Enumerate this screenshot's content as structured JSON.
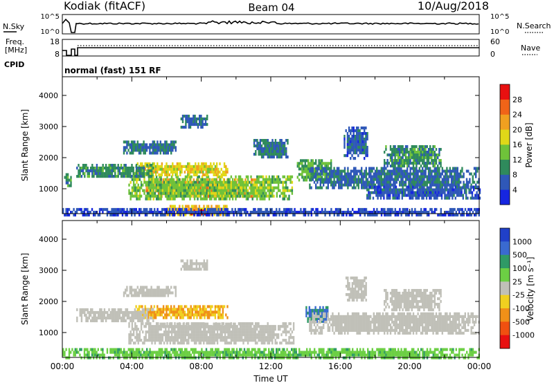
{
  "header": {
    "station": "Kodiak (fitACF)",
    "beam": "Beam 04",
    "date": "10/Aug/2018"
  },
  "noise_panel": {
    "left_label": "N.Sky",
    "right_label": "N.Search",
    "left_ticks": [
      "10^5",
      "10^0"
    ],
    "right_ticks": [
      "10^5",
      "10^0"
    ]
  },
  "freq_panel": {
    "left_label_line1": "Freq.",
    "left_label_line2": "[MHz]",
    "left_ticks": [
      "18",
      "8"
    ],
    "right_label": "Nave",
    "right_ticks": [
      "60",
      "0"
    ]
  },
  "cpid": {
    "label": "CPID",
    "value": "normal (fast) 151 RF"
  },
  "chart_data": [
    {
      "type": "heatmap",
      "name": "power",
      "ylabel": "Slant Range [km]",
      "ylim": [
        200,
        4600
      ],
      "yticks": [
        1000,
        2000,
        3000,
        4000
      ],
      "xlim": [
        0,
        24
      ],
      "colorbar": {
        "label": "Power [dB]",
        "ticks": [
          "4",
          "8",
          "12",
          "16",
          "20",
          "24",
          "28"
        ],
        "colors": [
          "#1626e0",
          "#2f58b8",
          "#2f8a5c",
          "#6fc23a",
          "#e0d818",
          "#f0a020",
          "#f06418",
          "#e81010"
        ]
      },
      "regions": [
        {
          "t0": 6.0,
          "t1": 10.2,
          "r0": 820,
          "r1": 1150,
          "dB": 30
        },
        {
          "t0": 4.8,
          "t1": 11.2,
          "r0": 740,
          "r1": 1330,
          "dB": 22
        },
        {
          "t0": 3.8,
          "t1": 13.2,
          "r0": 660,
          "r1": 1430,
          "dB": 14
        },
        {
          "t0": 4.2,
          "t1": 9.5,
          "r0": 1460,
          "r1": 1850,
          "dB": 18
        },
        {
          "t0": 0.8,
          "t1": 5.2,
          "r0": 1380,
          "r1": 1800,
          "dB": 10
        },
        {
          "t0": 3.5,
          "t1": 6.5,
          "r0": 2150,
          "r1": 2550,
          "dB": 8
        },
        {
          "t0": 6.8,
          "t1": 8.3,
          "r0": 2980,
          "r1": 3380,
          "dB": 7
        },
        {
          "t0": 0.1,
          "t1": 0.5,
          "r0": 1100,
          "r1": 1500,
          "dB": 10
        },
        {
          "t0": 13.5,
          "t1": 15.5,
          "r0": 1250,
          "r1": 1950,
          "dB": 12
        },
        {
          "t0": 14.2,
          "t1": 24,
          "r0": 1000,
          "r1": 1700,
          "dB": 7
        },
        {
          "t0": 17.5,
          "t1": 24,
          "r0": 700,
          "r1": 1100,
          "dB": 6
        },
        {
          "t0": 11.0,
          "t1": 13.0,
          "r0": 2000,
          "r1": 2600,
          "dB": 8
        },
        {
          "t0": 16.2,
          "t1": 17.6,
          "r0": 2000,
          "r1": 3000,
          "dB": 6
        },
        {
          "t0": 18.5,
          "t1": 21.8,
          "r0": 1700,
          "r1": 2400,
          "dB": 10
        },
        {
          "t0": 6.0,
          "t1": 9.5,
          "r0": 200,
          "r1": 480,
          "dB": 20
        },
        {
          "t0": 7.2,
          "t1": 8.3,
          "r0": 200,
          "r1": 330,
          "dB": 30
        },
        {
          "t0": 0,
          "t1": 24,
          "r0": 200,
          "r1": 380,
          "dB": 5
        }
      ]
    },
    {
      "type": "heatmap",
      "name": "velocity",
      "ylabel": "Slant Range [km]",
      "xlabel": "Time UT",
      "ylim": [
        200,
        4600
      ],
      "yticks": [
        1000,
        2000,
        3000,
        4000
      ],
      "xlim": [
        0,
        24
      ],
      "xticks": [
        "00:00",
        "04:00",
        "08:00",
        "12:00",
        "16:00",
        "20:00",
        "00:00"
      ],
      "colorbar": {
        "label": "Velocity [m s⁻¹]",
        "ticks": [
          "1000",
          "500",
          "100",
          "25",
          "-25",
          "-100",
          "-500",
          "-1000"
        ],
        "colors": [
          "#2040c8",
          "#3a6ad0",
          "#2f9a66",
          "#6ccf44",
          "#c0c0b8",
          "#f0d020",
          "#f09018",
          "#f05010",
          "#e81010"
        ]
      },
      "regions": [
        {
          "t0": 3.8,
          "t1": 13.3,
          "r0": 680,
          "r1": 1330,
          "v": 0
        },
        {
          "t0": 5.6,
          "t1": 10.2,
          "r0": 1150,
          "r1": 1320,
          "v": 0
        },
        {
          "t0": 4.2,
          "t1": 9.5,
          "r0": 1500,
          "r1": 1880,
          "v": -60
        },
        {
          "t0": 0.8,
          "t1": 5.2,
          "r0": 1400,
          "r1": 1780,
          "v": 0
        },
        {
          "t0": 3.5,
          "t1": 6.5,
          "r0": 2150,
          "r1": 2500,
          "v": 0
        },
        {
          "t0": 6.8,
          "t1": 8.3,
          "r0": 3000,
          "r1": 3350,
          "v": 0
        },
        {
          "t0": 14.0,
          "t1": 15.3,
          "r0": 1400,
          "r1": 1850,
          "v": 300
        },
        {
          "t0": 14.2,
          "t1": 24,
          "r0": 1000,
          "r1": 1650,
          "v": 0
        },
        {
          "t0": 16.3,
          "t1": 17.5,
          "r0": 2000,
          "r1": 2800,
          "v": 0
        },
        {
          "t0": 18.5,
          "t1": 21.8,
          "r0": 1750,
          "r1": 2400,
          "v": 0
        },
        {
          "t0": 0,
          "t1": 24,
          "r0": 200,
          "r1": 500,
          "v": 50
        }
      ]
    }
  ]
}
